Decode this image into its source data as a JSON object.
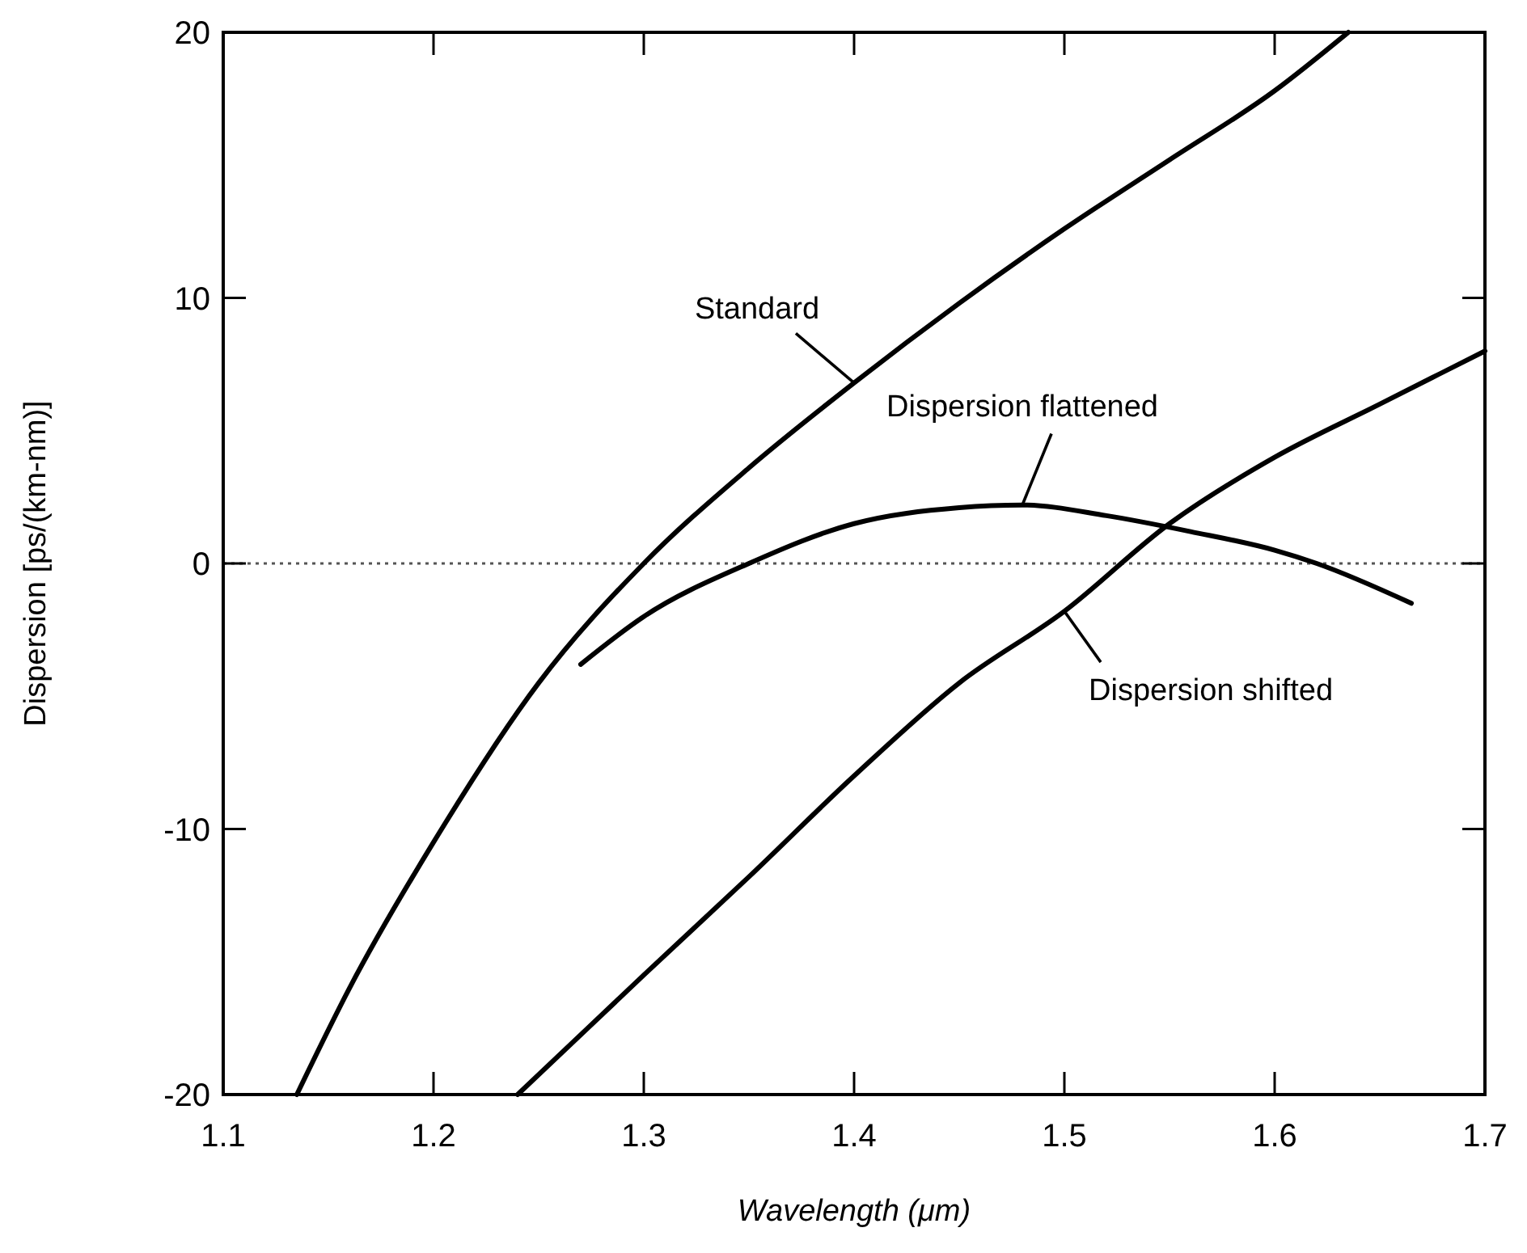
{
  "chart_data": {
    "type": "line",
    "xlabel": "Wavelength (μm)",
    "ylabel": "Dispersion [ps/(km-nm)]",
    "xlim": [
      1.1,
      1.7
    ],
    "xticks": [
      1.1,
      1.2,
      1.3,
      1.4,
      1.5,
      1.6,
      1.7
    ],
    "ylim": [
      -20,
      20
    ],
    "yticks": [
      -20,
      -10,
      0,
      10,
      20
    ],
    "grid": false,
    "marker": "none",
    "line_style": "solid",
    "ref_lines": [
      {
        "axis": "y",
        "value": 0,
        "color": "#555555",
        "line_style": "dotted"
      }
    ],
    "series": [
      {
        "name": "Standard",
        "color": "#000000",
        "x": [
          1.135,
          1.16,
          1.2,
          1.25,
          1.3,
          1.35,
          1.4,
          1.45,
          1.5,
          1.55,
          1.6,
          1.635
        ],
        "values": [
          -20,
          -16,
          -10.5,
          -4.5,
          0,
          3.6,
          6.8,
          9.8,
          12.6,
          15.2,
          17.8,
          20
        ]
      },
      {
        "name": "Dispersion flattened",
        "color": "#000000",
        "x": [
          1.27,
          1.3,
          1.35,
          1.4,
          1.45,
          1.48,
          1.52,
          1.56,
          1.6,
          1.62,
          1.665
        ],
        "values": [
          -3.8,
          -2,
          0,
          1.5,
          2.1,
          2.2,
          1.8,
          1.2,
          0.5,
          0,
          -1.5
        ]
      },
      {
        "name": "Dispersion shifted",
        "color": "#000000",
        "x": [
          1.24,
          1.3,
          1.35,
          1.4,
          1.45,
          1.5,
          1.55,
          1.6,
          1.65,
          1.7
        ],
        "values": [
          -20,
          -15.5,
          -11.8,
          -8,
          -4.5,
          -1.8,
          1.5,
          4,
          6,
          8
        ]
      }
    ]
  }
}
